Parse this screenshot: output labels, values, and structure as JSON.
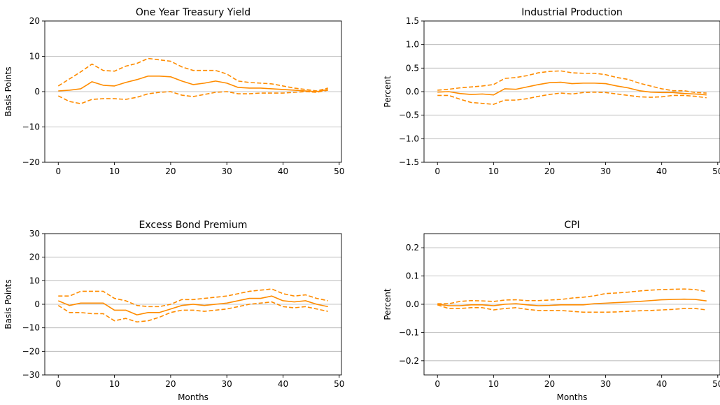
{
  "colors": {
    "series": "#ff8c00"
  },
  "chart_data": [
    {
      "type": "line",
      "title": "One Year Treasury Yield",
      "xlabel": "",
      "ylabel": "Basis Points",
      "xlim": [
        -2.4,
        50.4
      ],
      "ylim": [
        -20,
        20
      ],
      "xticks": [
        0,
        10,
        20,
        30,
        40,
        50
      ],
      "xtick_labels": [
        "0",
        "10",
        "20",
        "30",
        "40",
        "50"
      ],
      "yticks": [
        -20,
        -10,
        0,
        10,
        20
      ],
      "ytick_labels": [
        "−20",
        "−10",
        "0",
        "10",
        "20"
      ],
      "grid": "y",
      "x_keys": [
        0,
        2,
        4,
        6,
        8,
        10,
        12,
        14,
        16,
        18,
        20,
        22,
        24,
        26,
        28,
        30,
        32,
        34,
        36,
        38,
        40,
        42,
        44,
        46,
        48
      ],
      "series": [
        {
          "style": "solid",
          "values": [
            0.2,
            0.4,
            0.8,
            2.8,
            1.8,
            1.6,
            2.6,
            3.4,
            4.4,
            4.4,
            4.2,
            3.0,
            2.0,
            2.4,
            3.0,
            2.4,
            1.2,
            1.0,
            1.0,
            0.8,
            0.6,
            0.4,
            0.2,
            0.0,
            0.6
          ]
        },
        {
          "style": "dashed",
          "values": [
            1.6,
            3.6,
            5.6,
            7.8,
            6.0,
            5.8,
            7.2,
            8.0,
            9.4,
            9.0,
            8.6,
            7.0,
            6.0,
            6.0,
            6.0,
            5.0,
            3.0,
            2.6,
            2.4,
            2.2,
            1.6,
            1.0,
            0.6,
            0.2,
            1.0
          ]
        },
        {
          "style": "dashed",
          "values": [
            -1.2,
            -2.8,
            -3.4,
            -2.2,
            -2.0,
            -2.0,
            -2.2,
            -1.6,
            -0.6,
            -0.2,
            0.0,
            -1.0,
            -1.4,
            -0.8,
            -0.2,
            0.0,
            -0.6,
            -0.6,
            -0.4,
            -0.4,
            -0.4,
            -0.2,
            0.0,
            -0.2,
            0.4
          ]
        }
      ]
    },
    {
      "type": "line",
      "title": "Industrial Production",
      "xlabel": "",
      "ylabel": "Percent",
      "xlim": [
        -2.4,
        50.4
      ],
      "ylim": [
        -1.5,
        1.5
      ],
      "xticks": [
        0,
        10,
        20,
        30,
        40,
        50
      ],
      "xtick_labels": [
        "0",
        "10",
        "20",
        "30",
        "40",
        "50"
      ],
      "yticks": [
        -1.5,
        -1.0,
        -0.5,
        0.0,
        0.5,
        1.0,
        1.5
      ],
      "ytick_labels": [
        "−1.5",
        "−1.0",
        "−0.5",
        "0.0",
        "0.5",
        "1.0",
        "1.5"
      ],
      "grid": "y",
      "x_keys": [
        0,
        2,
        4,
        6,
        8,
        10,
        12,
        14,
        16,
        18,
        20,
        22,
        24,
        26,
        28,
        30,
        32,
        34,
        36,
        38,
        40,
        42,
        44,
        46,
        48
      ],
      "series": [
        {
          "style": "solid",
          "values": [
            -0.01,
            0.0,
            -0.04,
            -0.06,
            -0.05,
            -0.07,
            0.06,
            0.05,
            0.1,
            0.15,
            0.19,
            0.2,
            0.17,
            0.18,
            0.18,
            0.17,
            0.12,
            0.08,
            0.02,
            -0.01,
            -0.02,
            -0.02,
            -0.04,
            -0.05,
            -0.07
          ]
        },
        {
          "style": "dashed",
          "values": [
            0.03,
            0.05,
            0.08,
            0.1,
            0.12,
            0.15,
            0.28,
            0.3,
            0.34,
            0.4,
            0.43,
            0.44,
            0.4,
            0.39,
            0.39,
            0.36,
            0.3,
            0.26,
            0.18,
            0.12,
            0.06,
            0.02,
            0.02,
            -0.02,
            -0.03
          ]
        },
        {
          "style": "dashed",
          "values": [
            -0.08,
            -0.08,
            -0.16,
            -0.23,
            -0.25,
            -0.27,
            -0.18,
            -0.18,
            -0.15,
            -0.1,
            -0.06,
            -0.03,
            -0.05,
            -0.02,
            -0.01,
            -0.02,
            -0.05,
            -0.08,
            -0.11,
            -0.12,
            -0.11,
            -0.08,
            -0.08,
            -0.1,
            -0.13
          ]
        }
      ]
    },
    {
      "type": "line",
      "title": "Excess Bond Premium",
      "xlabel": "Months",
      "ylabel": "Basis Points",
      "xlim": [
        -2.4,
        50.4
      ],
      "ylim": [
        -30,
        30
      ],
      "xticks": [
        0,
        10,
        20,
        30,
        40,
        50
      ],
      "xtick_labels": [
        "0",
        "10",
        "20",
        "30",
        "40",
        "50"
      ],
      "yticks": [
        -30,
        -20,
        -10,
        0,
        10,
        20,
        30
      ],
      "ytick_labels": [
        "−30",
        "−20",
        "−10",
        "0",
        "10",
        "20",
        "30"
      ],
      "grid": "y",
      "x_keys": [
        0,
        2,
        4,
        6,
        8,
        10,
        12,
        14,
        16,
        18,
        20,
        22,
        24,
        26,
        28,
        30,
        32,
        34,
        36,
        38,
        40,
        42,
        44,
        46,
        48
      ],
      "series": [
        {
          "style": "solid",
          "values": [
            1.5,
            -0.5,
            0.5,
            0.5,
            0.5,
            -2.5,
            -2.5,
            -4.5,
            -3.5,
            -3.5,
            -2.0,
            -0.5,
            0.0,
            -0.5,
            0.0,
            0.5,
            1.5,
            2.5,
            2.5,
            3.5,
            1.5,
            1.0,
            1.5,
            0.0,
            -1.0
          ]
        },
        {
          "style": "dashed",
          "values": [
            3.5,
            3.5,
            5.5,
            5.5,
            5.5,
            2.5,
            1.5,
            -0.5,
            -1.0,
            -1.0,
            0.0,
            2.0,
            2.0,
            2.5,
            3.0,
            3.5,
            4.5,
            5.5,
            6.0,
            6.5,
            4.5,
            3.5,
            4.0,
            2.5,
            1.5
          ]
        },
        {
          "style": "dashed",
          "values": [
            -0.5,
            -3.5,
            -3.5,
            -4.0,
            -4.0,
            -7.0,
            -6.0,
            -7.5,
            -7.0,
            -5.5,
            -3.5,
            -2.5,
            -2.5,
            -3.0,
            -2.5,
            -2.0,
            -1.0,
            0.0,
            0.5,
            1.0,
            -1.0,
            -1.5,
            -1.0,
            -2.0,
            -3.0
          ]
        }
      ]
    },
    {
      "type": "line",
      "title": "CPI",
      "xlabel": "Months",
      "ylabel": "Percent",
      "xlim": [
        -2.4,
        50.4
      ],
      "ylim": [
        -0.25,
        0.25
      ],
      "xticks": [
        0,
        10,
        20,
        30,
        40,
        50
      ],
      "xtick_labels": [
        "0",
        "10",
        "20",
        "30",
        "40",
        "50"
      ],
      "yticks": [
        -0.2,
        -0.1,
        0.0,
        0.1,
        0.2
      ],
      "ytick_labels": [
        "−0.2",
        "−0.1",
        "0.0",
        "0.1",
        "0.2"
      ],
      "grid": "y",
      "x_keys": [
        0,
        2,
        4,
        6,
        8,
        10,
        12,
        14,
        16,
        18,
        20,
        22,
        24,
        26,
        28,
        30,
        32,
        34,
        36,
        38,
        40,
        42,
        44,
        46,
        48
      ],
      "series": [
        {
          "style": "solid",
          "values": [
            0.0,
            -0.005,
            -0.005,
            -0.002,
            -0.002,
            -0.005,
            0.0,
            0.002,
            -0.002,
            -0.005,
            -0.004,
            -0.002,
            -0.002,
            -0.002,
            0.002,
            0.004,
            0.006,
            0.008,
            0.01,
            0.013,
            0.016,
            0.017,
            0.018,
            0.017,
            0.012
          ]
        },
        {
          "style": "dashed",
          "values": [
            0.002,
            0.002,
            0.01,
            0.013,
            0.012,
            0.01,
            0.015,
            0.016,
            0.013,
            0.013,
            0.015,
            0.017,
            0.022,
            0.025,
            0.03,
            0.038,
            0.04,
            0.043,
            0.047,
            0.05,
            0.052,
            0.053,
            0.054,
            0.052,
            0.045
          ]
        },
        {
          "style": "dashed",
          "values": [
            -0.002,
            -0.015,
            -0.015,
            -0.012,
            -0.012,
            -0.02,
            -0.015,
            -0.012,
            -0.018,
            -0.022,
            -0.022,
            -0.022,
            -0.025,
            -0.028,
            -0.028,
            -0.028,
            -0.027,
            -0.025,
            -0.023,
            -0.022,
            -0.02,
            -0.018,
            -0.015,
            -0.015,
            -0.02
          ]
        }
      ]
    }
  ]
}
